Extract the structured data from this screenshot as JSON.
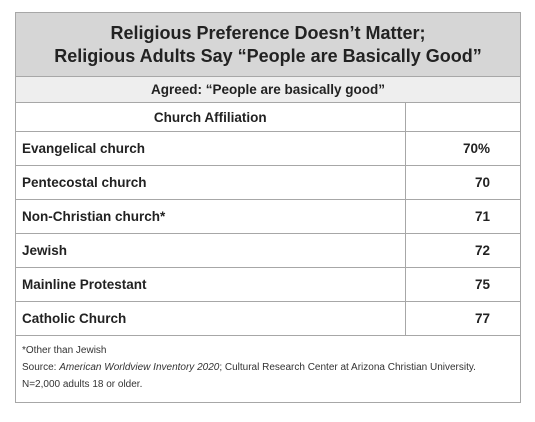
{
  "title_line1": "Religious Preference Doesn’t Matter;",
  "title_line2": "Religious Adults Say “People are Basically Good”",
  "subtitle": "Agreed: “People are basically good”",
  "header": {
    "label": "Church Affiliation",
    "value": ""
  },
  "rows": [
    {
      "label": "Evangelical church",
      "value": "70%"
    },
    {
      "label": "Pentecostal church",
      "value": "70"
    },
    {
      "label": "Non-Christian church*",
      "value": "71"
    },
    {
      "label": "Jewish",
      "value": "72"
    },
    {
      "label": "Mainline Protestant",
      "value": "75"
    },
    {
      "label": "Catholic Church",
      "value": "77"
    }
  ],
  "notes": {
    "footnote": "*Other than Jewish",
    "source_prefix": "Source: ",
    "source_title": "American Worldview Inventory 2020",
    "source_rest": "; Cultural Research Center at Arizona Christian University. N=2,000 adults 18 or older."
  },
  "chart_data": {
    "type": "table",
    "title": "Religious Preference Doesn’t Matter; Religious Adults Say “People are Basically Good”",
    "subtitle": "Agreed: “People are basically good”",
    "columns": [
      "Church Affiliation",
      ""
    ],
    "categories": [
      "Evangelical church",
      "Pentecostal church",
      "Non-Christian church*",
      "Jewish",
      "Mainline Protestant",
      "Catholic Church"
    ],
    "values": [
      70,
      70,
      71,
      72,
      75,
      77
    ],
    "unit": "%"
  }
}
